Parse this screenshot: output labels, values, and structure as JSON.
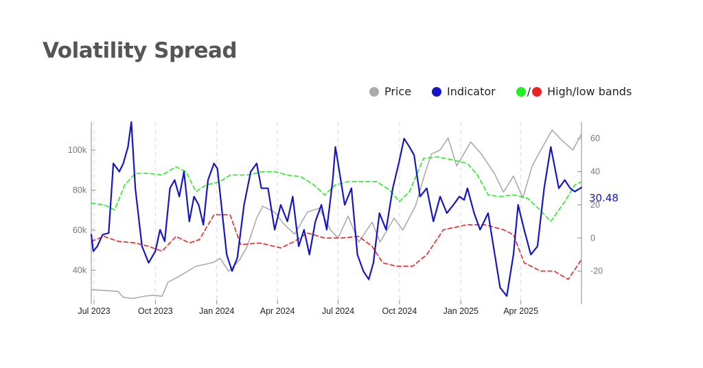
{
  "title": "Volatility Spread",
  "legend": {
    "price": "Price",
    "indicator": "Indicator",
    "bands_separator": "/",
    "bands": "High/low bands"
  },
  "colors": {
    "price": "#aaaaaa",
    "indicator": "#1414c8",
    "high_band": "#22ee22",
    "low_band": "#ee2222",
    "title": "#555555"
  },
  "chart_data": {
    "type": "line",
    "title": "Volatility Spread",
    "xlabel": "",
    "ylabel_left": "",
    "ylabel_right": "",
    "grid": "vertical dashed at month ticks",
    "legend_placement": "top-right",
    "x_ticks": [
      "Jul 2023",
      "Oct 2023",
      "Jan 2024",
      "Apr 2024",
      "Jul 2024",
      "Oct 2024",
      "Jan 2025",
      "Apr 2025"
    ],
    "x_tick_dates": [
      "2023-07-01",
      "2023-10-01",
      "2024-01-01",
      "2024-04-01",
      "2024-07-01",
      "2024-10-01",
      "2025-01-01",
      "2025-04-01"
    ],
    "x_range": [
      "2023-07-01",
      "2025-07-05"
    ],
    "left_axis": {
      "ticks": [
        40000,
        60000,
        80000,
        100000
      ],
      "tick_labels": [
        "40k",
        "60k",
        "80k",
        "100k"
      ],
      "range": [
        23000,
        114000
      ]
    },
    "right_axis": {
      "ticks": [
        -20,
        0,
        20,
        40,
        60
      ],
      "tick_labels": [
        "-20",
        "0",
        "20",
        "40",
        "60"
      ],
      "range": [
        -40,
        70
      ]
    },
    "last_value_label": "30.48",
    "series": [
      {
        "name": "Price",
        "axis": "left",
        "points": [
          [
            "2023-07-01",
            30300
          ],
          [
            "2023-07-20",
            29900
          ],
          [
            "2023-08-10",
            29400
          ],
          [
            "2023-08-18",
            26500
          ],
          [
            "2023-09-01",
            25900
          ],
          [
            "2023-09-20",
            27100
          ],
          [
            "2023-10-01",
            27500
          ],
          [
            "2023-10-15",
            27000
          ],
          [
            "2023-10-24",
            34000
          ],
          [
            "2023-11-10",
            37000
          ],
          [
            "2023-12-05",
            42000
          ],
          [
            "2023-12-20",
            43000
          ],
          [
            "2024-01-01",
            44000
          ],
          [
            "2024-01-10",
            46000
          ],
          [
            "2024-01-23",
            39500
          ],
          [
            "2024-02-08",
            45000
          ],
          [
            "2024-02-20",
            52000
          ],
          [
            "2024-03-05",
            66000
          ],
          [
            "2024-03-14",
            72000
          ],
          [
            "2024-04-01",
            69000
          ],
          [
            "2024-04-15",
            63000
          ],
          [
            "2024-05-01",
            58000
          ],
          [
            "2024-05-20",
            69000
          ],
          [
            "2024-06-07",
            71000
          ],
          [
            "2024-06-24",
            60000
          ],
          [
            "2024-07-05",
            56000
          ],
          [
            "2024-07-20",
            67000
          ],
          [
            "2024-08-05",
            54000
          ],
          [
            "2024-08-25",
            64000
          ],
          [
            "2024-09-06",
            54000
          ],
          [
            "2024-09-27",
            66000
          ],
          [
            "2024-10-10",
            60000
          ],
          [
            "2024-10-29",
            72000
          ],
          [
            "2024-11-12",
            88000
          ],
          [
            "2024-11-22",
            98000
          ],
          [
            "2024-12-05",
            100000
          ],
          [
            "2024-12-17",
            106000
          ],
          [
            "2024-12-30",
            92000
          ],
          [
            "2025-01-20",
            104000
          ],
          [
            "2025-02-05",
            98000
          ],
          [
            "2025-02-25",
            88000
          ],
          [
            "2025-03-10",
            79000
          ],
          [
            "2025-03-25",
            87000
          ],
          [
            "2025-04-08",
            76000
          ],
          [
            "2025-04-22",
            92000
          ],
          [
            "2025-05-10",
            103000
          ],
          [
            "2025-05-22",
            110000
          ],
          [
            "2025-06-05",
            105000
          ],
          [
            "2025-06-22",
            100000
          ],
          [
            "2025-07-05",
            108000
          ]
        ]
      },
      {
        "name": "Indicator",
        "axis": "right",
        "points": [
          [
            "2023-07-01",
            2
          ],
          [
            "2023-07-04",
            -8
          ],
          [
            "2023-07-10",
            -5
          ],
          [
            "2023-07-18",
            2
          ],
          [
            "2023-07-27",
            3
          ],
          [
            "2023-08-03",
            45
          ],
          [
            "2023-08-12",
            40
          ],
          [
            "2023-08-18",
            45
          ],
          [
            "2023-08-25",
            55
          ],
          [
            "2023-08-30",
            70
          ],
          [
            "2023-09-05",
            30
          ],
          [
            "2023-09-15",
            -5
          ],
          [
            "2023-09-25",
            -15
          ],
          [
            "2023-10-05",
            -8
          ],
          [
            "2023-10-12",
            5
          ],
          [
            "2023-10-19",
            -2
          ],
          [
            "2023-10-27",
            30
          ],
          [
            "2023-11-03",
            35
          ],
          [
            "2023-11-10",
            25
          ],
          [
            "2023-11-17",
            40
          ],
          [
            "2023-11-25",
            10
          ],
          [
            "2023-12-02",
            25
          ],
          [
            "2023-12-09",
            20
          ],
          [
            "2023-12-16",
            8
          ],
          [
            "2023-12-23",
            35
          ],
          [
            "2024-01-01",
            45
          ],
          [
            "2024-01-06",
            42
          ],
          [
            "2024-01-12",
            20
          ],
          [
            "2024-01-20",
            -10
          ],
          [
            "2024-01-28",
            -20
          ],
          [
            "2024-02-05",
            -12
          ],
          [
            "2024-02-15",
            20
          ],
          [
            "2024-02-25",
            40
          ],
          [
            "2024-03-05",
            45
          ],
          [
            "2024-03-12",
            30
          ],
          [
            "2024-03-22",
            30
          ],
          [
            "2024-04-01",
            5
          ],
          [
            "2024-04-10",
            20
          ],
          [
            "2024-04-20",
            10
          ],
          [
            "2024-04-28",
            25
          ],
          [
            "2024-05-07",
            -5
          ],
          [
            "2024-05-15",
            5
          ],
          [
            "2024-05-23",
            -10
          ],
          [
            "2024-06-01",
            10
          ],
          [
            "2024-06-10",
            20
          ],
          [
            "2024-06-18",
            5
          ],
          [
            "2024-06-27",
            35
          ],
          [
            "2024-07-01",
            55
          ],
          [
            "2024-07-07",
            40
          ],
          [
            "2024-07-15",
            20
          ],
          [
            "2024-07-25",
            30
          ],
          [
            "2024-08-03",
            -10
          ],
          [
            "2024-08-12",
            -20
          ],
          [
            "2024-08-20",
            -25
          ],
          [
            "2024-08-27",
            -15
          ],
          [
            "2024-09-05",
            15
          ],
          [
            "2024-09-15",
            5
          ],
          [
            "2024-09-25",
            30
          ],
          [
            "2024-10-04",
            45
          ],
          [
            "2024-10-12",
            60
          ],
          [
            "2024-10-20",
            55
          ],
          [
            "2024-10-27",
            50
          ],
          [
            "2024-11-05",
            25
          ],
          [
            "2024-11-15",
            30
          ],
          [
            "2024-11-25",
            10
          ],
          [
            "2024-12-05",
            25
          ],
          [
            "2024-12-15",
            15
          ],
          [
            "2024-12-25",
            20
          ],
          [
            "2025-01-03",
            25
          ],
          [
            "2025-01-10",
            23
          ],
          [
            "2025-01-15",
            30
          ],
          [
            "2025-01-25",
            15
          ],
          [
            "2025-02-03",
            5
          ],
          [
            "2025-02-15",
            15
          ],
          [
            "2025-02-25",
            -10
          ],
          [
            "2025-03-05",
            -30
          ],
          [
            "2025-03-15",
            -35
          ],
          [
            "2025-03-25",
            -10
          ],
          [
            "2025-04-01",
            20
          ],
          [
            "2025-04-10",
            5
          ],
          [
            "2025-04-20",
            -10
          ],
          [
            "2025-04-30",
            -5
          ],
          [
            "2025-05-10",
            30
          ],
          [
            "2025-05-20",
            55
          ],
          [
            "2025-06-01",
            30
          ],
          [
            "2025-06-10",
            35
          ],
          [
            "2025-06-18",
            30
          ],
          [
            "2025-06-25",
            28
          ],
          [
            "2025-07-05",
            30.48
          ]
        ]
      },
      {
        "name": "High band",
        "axis": "right",
        "points": [
          [
            "2023-07-01",
            21
          ],
          [
            "2023-07-20",
            20
          ],
          [
            "2023-08-05",
            17
          ],
          [
            "2023-08-20",
            32
          ],
          [
            "2023-09-05",
            39
          ],
          [
            "2023-09-25",
            39
          ],
          [
            "2023-10-15",
            38
          ],
          [
            "2023-11-05",
            43
          ],
          [
            "2023-11-20",
            40
          ],
          [
            "2023-12-05",
            28
          ],
          [
            "2023-12-20",
            32
          ],
          [
            "2024-01-10",
            34
          ],
          [
            "2024-01-25",
            38
          ],
          [
            "2024-02-20",
            38
          ],
          [
            "2024-03-15",
            40
          ],
          [
            "2024-04-01",
            40
          ],
          [
            "2024-04-20",
            38
          ],
          [
            "2024-05-10",
            37
          ],
          [
            "2024-05-30",
            32
          ],
          [
            "2024-06-15",
            26
          ],
          [
            "2024-07-01",
            32
          ],
          [
            "2024-07-20",
            34
          ],
          [
            "2024-08-10",
            34
          ],
          [
            "2024-09-01",
            34
          ],
          [
            "2024-09-20",
            29
          ],
          [
            "2024-10-05",
            22
          ],
          [
            "2024-10-20",
            28
          ],
          [
            "2024-11-10",
            48
          ],
          [
            "2024-12-01",
            49
          ],
          [
            "2024-12-25",
            47
          ],
          [
            "2025-01-15",
            45
          ],
          [
            "2025-01-30",
            38
          ],
          [
            "2025-02-15",
            26
          ],
          [
            "2025-03-05",
            25
          ],
          [
            "2025-03-25",
            26
          ],
          [
            "2025-04-15",
            24
          ],
          [
            "2025-05-01",
            18
          ],
          [
            "2025-05-20",
            10
          ],
          [
            "2025-06-10",
            22
          ],
          [
            "2025-06-25",
            32
          ],
          [
            "2025-07-05",
            34
          ]
        ]
      },
      {
        "name": "Low band",
        "axis": "right",
        "points": [
          [
            "2023-07-01",
            -2
          ],
          [
            "2023-07-20",
            1
          ],
          [
            "2023-08-10",
            -2
          ],
          [
            "2023-09-05",
            -3
          ],
          [
            "2023-09-25",
            -5
          ],
          [
            "2023-10-15",
            -8
          ],
          [
            "2023-11-05",
            1
          ],
          [
            "2023-11-25",
            -3
          ],
          [
            "2023-12-10",
            -1
          ],
          [
            "2024-01-01",
            14
          ],
          [
            "2024-01-25",
            14
          ],
          [
            "2024-02-10",
            -4
          ],
          [
            "2024-03-10",
            -3
          ],
          [
            "2024-04-10",
            -6
          ],
          [
            "2024-05-01",
            -2
          ],
          [
            "2024-05-20",
            3
          ],
          [
            "2024-06-15",
            0
          ],
          [
            "2024-07-10",
            0
          ],
          [
            "2024-08-05",
            1
          ],
          [
            "2024-08-25",
            -5
          ],
          [
            "2024-09-10",
            -15
          ],
          [
            "2024-09-30",
            -17
          ],
          [
            "2024-10-25",
            -17
          ],
          [
            "2024-11-15",
            -10
          ],
          [
            "2024-12-10",
            5
          ],
          [
            "2025-01-15",
            8
          ],
          [
            "2025-02-10",
            8
          ],
          [
            "2025-03-10",
            5
          ],
          [
            "2025-03-25",
            2
          ],
          [
            "2025-04-10",
            -15
          ],
          [
            "2025-05-05",
            -20
          ],
          [
            "2025-05-25",
            -20
          ],
          [
            "2025-06-15",
            -25
          ],
          [
            "2025-07-05",
            -13
          ]
        ]
      }
    ]
  }
}
